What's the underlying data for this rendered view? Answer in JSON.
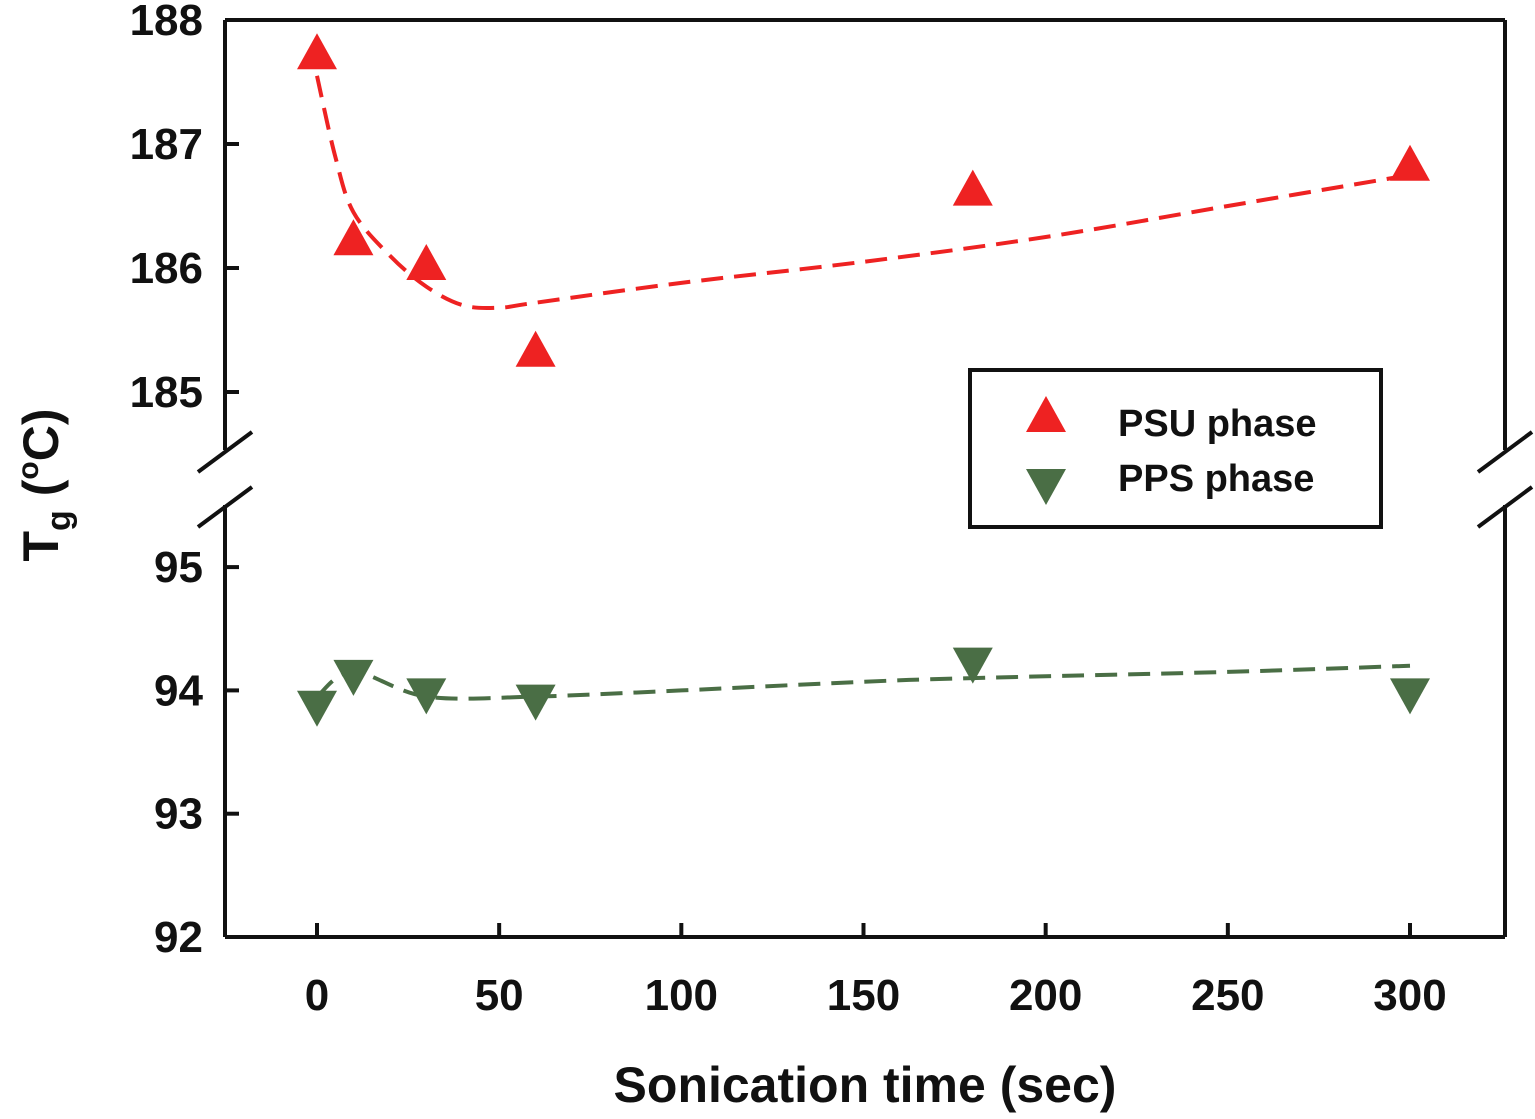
{
  "chart_data": {
    "type": "scatter",
    "title": "",
    "xlabel": "Sonication time (sec)",
    "ylabel": {
      "main": "T",
      "subscript": "g",
      "unit_open": " (",
      "degree": "o",
      "unit": "C)"
    },
    "xlim": [
      -25,
      327
    ],
    "xticks": [
      0,
      50,
      100,
      150,
      200,
      250,
      300
    ],
    "x_tick_labels": [
      "0",
      "50",
      "100",
      "150",
      "200",
      "250",
      "300"
    ],
    "y_axis_broken": true,
    "y_segments": [
      {
        "name": "lower",
        "ylim": [
          92,
          95.5
        ],
        "ticks": [
          92,
          93,
          94,
          95
        ],
        "tick_labels": [
          "92",
          "93",
          "94",
          "95"
        ]
      },
      {
        "name": "upper",
        "ylim": [
          184.5,
          188
        ],
        "ticks": [
          185,
          186,
          187,
          188
        ],
        "tick_labels": [
          "185",
          "186",
          "187",
          "188"
        ]
      }
    ],
    "grid": false,
    "legend_position": "center-right",
    "series": [
      {
        "name": "PSU phase",
        "marker": "triangle-up",
        "color": "#ee2222",
        "segment": "upper",
        "x": [
          0,
          10,
          30,
          60,
          180,
          300
        ],
        "y": [
          187.7,
          186.2,
          186.0,
          185.3,
          186.6,
          186.8
        ],
        "trend": {
          "style": "dashed",
          "x": [
            0,
            5,
            10,
            20,
            30,
            40,
            50,
            60,
            100,
            150,
            200,
            250,
            300
          ],
          "y": [
            187.55,
            186.9,
            186.45,
            186.1,
            185.85,
            185.7,
            185.68,
            185.72,
            185.88,
            186.05,
            186.25,
            186.5,
            186.75
          ]
        }
      },
      {
        "name": "PPS phase",
        "marker": "triangle-down",
        "color": "#4a6e45",
        "segment": "lower",
        "x": [
          0,
          10,
          30,
          60,
          180,
          300
        ],
        "y": [
          93.9,
          94.15,
          94.0,
          93.95,
          94.25,
          94.0
        ],
        "trend": {
          "style": "dashed",
          "x": [
            0,
            10,
            30,
            60,
            100,
            150,
            180,
            250,
            300
          ],
          "y": [
            93.95,
            94.15,
            93.95,
            93.95,
            94.0,
            94.07,
            94.1,
            94.15,
            94.2
          ]
        }
      }
    ]
  }
}
